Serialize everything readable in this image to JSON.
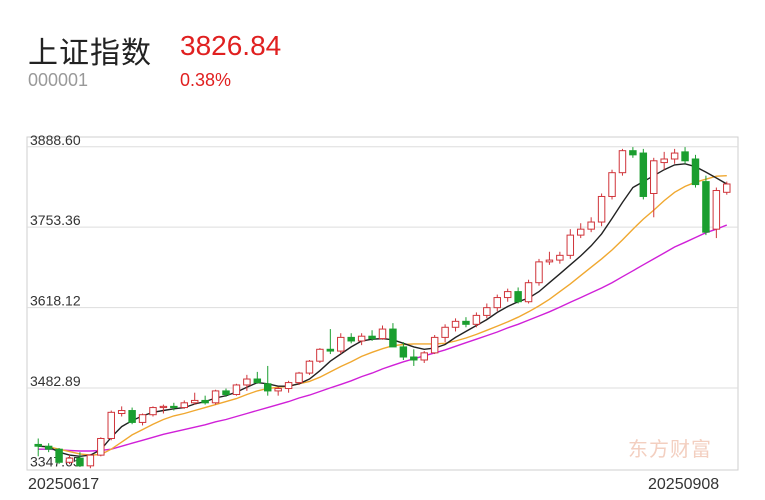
{
  "header": {
    "name": "上证指数",
    "code": "000001",
    "price": "3826.84",
    "change_pct": "0.38%"
  },
  "watermark": "东方财富",
  "colors": {
    "up": "#d0343a",
    "down": "#1a9e2f",
    "ma5": "#222222",
    "ma10": "#f0a830",
    "ma20": "#d020d8",
    "grid": "#dddddd"
  },
  "chart_data": {
    "type": "candlestick",
    "x_start_label": "20250617",
    "x_end_label": "20250908",
    "y_ticks": [
      "3888.60",
      "3753.36",
      "3618.12",
      "3482.89",
      "3347.65"
    ],
    "ylim": [
      3345,
      3905
    ],
    "candles": [
      [
        3388,
        3398,
        3368,
        3385
      ],
      [
        3385,
        3390,
        3375,
        3380
      ],
      [
        3380,
        3382,
        3355,
        3358
      ],
      [
        3358,
        3370,
        3355,
        3365
      ],
      [
        3365,
        3375,
        3350,
        3352
      ],
      [
        3352,
        3372,
        3348,
        3370
      ],
      [
        3370,
        3400,
        3368,
        3398
      ],
      [
        3398,
        3445,
        3395,
        3442
      ],
      [
        3440,
        3452,
        3435,
        3445
      ],
      [
        3445,
        3450,
        3422,
        3425
      ],
      [
        3425,
        3440,
        3420,
        3438
      ],
      [
        3438,
        3452,
        3435,
        3450
      ],
      [
        3450,
        3455,
        3440,
        3452
      ],
      [
        3452,
        3458,
        3445,
        3450
      ],
      [
        3450,
        3462,
        3448,
        3458
      ],
      [
        3458,
        3475,
        3455,
        3462
      ],
      [
        3462,
        3470,
        3455,
        3458
      ],
      [
        3458,
        3480,
        3455,
        3478
      ],
      [
        3478,
        3482,
        3468,
        3472
      ],
      [
        3472,
        3490,
        3470,
        3488
      ],
      [
        3488,
        3505,
        3478,
        3498
      ],
      [
        3498,
        3510,
        3490,
        3492
      ],
      [
        3490,
        3520,
        3470,
        3478
      ],
      [
        3478,
        3485,
        3470,
        3482
      ],
      [
        3482,
        3495,
        3475,
        3492
      ],
      [
        3492,
        3510,
        3488,
        3508
      ],
      [
        3508,
        3530,
        3505,
        3528
      ],
      [
        3528,
        3550,
        3525,
        3548
      ],
      [
        3548,
        3582,
        3540,
        3545
      ],
      [
        3545,
        3575,
        3540,
        3568
      ],
      [
        3568,
        3575,
        3558,
        3562
      ],
      [
        3562,
        3575,
        3555,
        3570
      ],
      [
        3570,
        3580,
        3562,
        3566
      ],
      [
        3566,
        3588,
        3564,
        3582
      ],
      [
        3582,
        3592,
        3555,
        3552
      ],
      [
        3552,
        3560,
        3530,
        3535
      ],
      [
        3535,
        3548,
        3520,
        3530
      ],
      [
        3530,
        3545,
        3525,
        3542
      ],
      [
        3542,
        3572,
        3540,
        3568
      ],
      [
        3568,
        3590,
        3560,
        3585
      ],
      [
        3585,
        3600,
        3578,
        3595
      ],
      [
        3595,
        3602,
        3585,
        3590
      ],
      [
        3590,
        3610,
        3585,
        3605
      ],
      [
        3605,
        3625,
        3600,
        3618
      ],
      [
        3618,
        3640,
        3612,
        3635
      ],
      [
        3635,
        3650,
        3628,
        3645
      ],
      [
        3645,
        3652,
        3625,
        3628
      ],
      [
        3628,
        3665,
        3625,
        3660
      ],
      [
        3660,
        3700,
        3655,
        3695
      ],
      [
        3695,
        3712,
        3690,
        3698
      ],
      [
        3698,
        3712,
        3692,
        3706
      ],
      [
        3706,
        3750,
        3700,
        3740
      ],
      [
        3740,
        3760,
        3735,
        3750
      ],
      [
        3750,
        3770,
        3745,
        3762
      ],
      [
        3762,
        3810,
        3755,
        3805
      ],
      [
        3805,
        3850,
        3800,
        3845
      ],
      [
        3845,
        3885,
        3840,
        3882
      ],
      [
        3882,
        3888,
        3870,
        3875
      ],
      [
        3878,
        3885,
        3800,
        3805
      ],
      [
        3810,
        3870,
        3770,
        3865
      ],
      [
        3862,
        3880,
        3850,
        3868
      ],
      [
        3868,
        3885,
        3860,
        3878
      ],
      [
        3880,
        3888,
        3860,
        3865
      ],
      [
        3868,
        3875,
        3820,
        3825
      ],
      [
        3830,
        3840,
        3740,
        3745
      ],
      [
        3750,
        3820,
        3735,
        3815
      ],
      [
        3812,
        3830,
        3808,
        3826
      ]
    ],
    "ma5": [
      3385,
      3384,
      3375,
      3370,
      3368,
      3370,
      3379,
      3400,
      3418,
      3428,
      3436,
      3442,
      3445,
      3448,
      3450,
      3456,
      3460,
      3466,
      3470,
      3476,
      3484,
      3492,
      3490,
      3486,
      3486,
      3490,
      3498,
      3512,
      3528,
      3540,
      3552,
      3562,
      3565,
      3566,
      3564,
      3558,
      3552,
      3548,
      3550,
      3556,
      3568,
      3578,
      3588,
      3598,
      3610,
      3620,
      3628,
      3634,
      3645,
      3660,
      3675,
      3690,
      3705,
      3722,
      3742,
      3768,
      3795,
      3820,
      3830,
      3840,
      3850,
      3858,
      3860,
      3855,
      3846,
      3836,
      3826
    ],
    "ma10": [
      3385,
      3384,
      3380,
      3376,
      3372,
      3370,
      3371,
      3380,
      3392,
      3404,
      3413,
      3422,
      3430,
      3436,
      3440,
      3445,
      3450,
      3455,
      3460,
      3465,
      3472,
      3478,
      3482,
      3484,
      3486,
      3490,
      3494,
      3501,
      3510,
      3519,
      3527,
      3536,
      3543,
      3549,
      3554,
      3556,
      3557,
      3557,
      3557,
      3558,
      3562,
      3567,
      3573,
      3580,
      3587,
      3594,
      3602,
      3611,
      3621,
      3632,
      3645,
      3658,
      3672,
      3686,
      3700,
      3715,
      3732,
      3750,
      3767,
      3782,
      3798,
      3812,
      3822,
      3829,
      3834,
      3839,
      3840
    ],
    "ma20": [
      3380,
      3380,
      3379,
      3378,
      3377,
      3377,
      3378,
      3380,
      3385,
      3390,
      3395,
      3400,
      3405,
      3409,
      3413,
      3417,
      3421,
      3426,
      3430,
      3435,
      3440,
      3445,
      3450,
      3455,
      3460,
      3466,
      3471,
      3477,
      3483,
      3489,
      3495,
      3502,
      3508,
      3515,
      3521,
      3527,
      3532,
      3537,
      3542,
      3547,
      3553,
      3559,
      3565,
      3571,
      3577,
      3584,
      3590,
      3597,
      3604,
      3611,
      3619,
      3627,
      3635,
      3643,
      3651,
      3660,
      3670,
      3680,
      3690,
      3700,
      3710,
      3720,
      3728,
      3736,
      3744,
      3750,
      3757
    ]
  }
}
